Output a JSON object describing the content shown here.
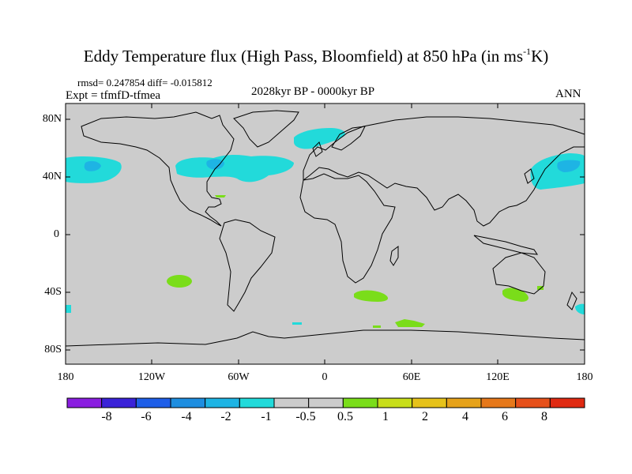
{
  "title": {
    "main": "Eddy Temperature flux (High Pass, Bloomfield) at 850 hPa (in ms",
    "sup": "-1",
    "tail": "K)"
  },
  "stats": "rmsd= 0.247854 diff= -0.015812",
  "experiment": "Expt = tfmfD-tfmea",
  "period": "2028kyr BP - 0000kyr BP",
  "season": "ANN",
  "lat_labels": [
    "80N",
    "40N",
    "0",
    "40S",
    "80S"
  ],
  "lon_labels": [
    "180",
    "120W",
    "60W",
    "0",
    "60E",
    "120E",
    "180"
  ],
  "colorbar": {
    "colors": [
      "#8a1ee0",
      "#3a22d8",
      "#1e5ee8",
      "#1e8ee0",
      "#1eb4e4",
      "#22dada",
      "#cccccc",
      "#cccccc",
      "#7add1a",
      "#c8de1a",
      "#e6c21a",
      "#e6a21a",
      "#e6781a",
      "#e6501a",
      "#e02a12"
    ],
    "labels": [
      "-8",
      "-6",
      "-4",
      "-2",
      "-1",
      "-0.5",
      "0.5",
      "1",
      "2",
      "4",
      "6",
      "8"
    ]
  },
  "colors": {
    "land_ocean": "#cccccc",
    "negative_anomaly": "#22dada",
    "negative_strong": "#1eb4e4",
    "positive_anomaly": "#7add1a"
  }
}
